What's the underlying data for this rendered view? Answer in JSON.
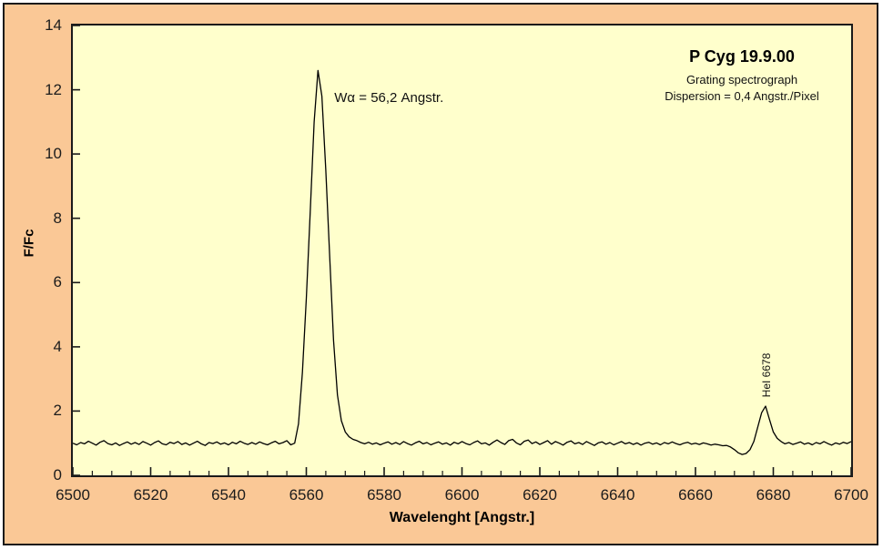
{
  "frame": {
    "background": "#fac896",
    "plot_background": "#ffffcc",
    "border_color": "#1a1a1a",
    "line_color": "#000000",
    "tick_label_color": "#1c1c1c"
  },
  "chart_data": {
    "type": "line",
    "title": "P Cyg 19.9.00",
    "subtitle1": "Grating spectrograph",
    "subtitle2": "Dispersion = 0,4 Angstr./Pixel",
    "xlabel": "Wavelenght [Angstr.]",
    "ylabel": "F/Fc",
    "xlim": [
      6500,
      6700
    ],
    "ylim": [
      0,
      14
    ],
    "x_major_step": 20,
    "x_minor_step": 5,
    "y_major_step": 2,
    "x_major_ticks": [
      6500,
      6520,
      6540,
      6560,
      6580,
      6600,
      6620,
      6640,
      6660,
      6680,
      6700
    ],
    "y_major_ticks": [
      0,
      2,
      4,
      6,
      8,
      10,
      12,
      14
    ],
    "grid": false,
    "legend": "none",
    "annotations": [
      {
        "text": "Wα = 56,2 Angstr.",
        "x": 6567.2,
        "y": 11.73,
        "rotate": 0
      },
      {
        "text": "HeI 6678",
        "x": 6678.2,
        "y": 3.12,
        "rotate": -90
      }
    ],
    "series": [
      {
        "name": "P Cyg spectrum",
        "x_start": 6500,
        "x_step": 1,
        "flux": [
          1.0,
          0.95,
          1.02,
          0.98,
          1.06,
          1.0,
          0.94,
          1.03,
          1.08,
          0.99,
          0.95,
          1.01,
          0.93,
          0.99,
          1.04,
          0.97,
          1.02,
          0.96,
          1.05,
          1.0,
          0.94,
          1.02,
          1.07,
          0.98,
          0.95,
          1.03,
          0.99,
          1.05,
          0.96,
          1.01,
          0.94,
          1.0,
          1.06,
          0.98,
          0.93,
          1.02,
          0.99,
          1.04,
          0.97,
          1.01,
          0.95,
          1.03,
          0.98,
          1.06,
          1.0,
          0.96,
          1.02,
          0.97,
          1.04,
          0.99,
          0.95,
          1.01,
          1.06,
          0.98,
          1.02,
          1.08,
          0.95,
          1.0,
          1.6,
          3.2,
          5.5,
          8.2,
          11.0,
          12.6,
          11.8,
          9.5,
          6.8,
          4.2,
          2.5,
          1.7,
          1.35,
          1.2,
          1.12,
          1.08,
          1.02,
          0.98,
          1.03,
          0.97,
          1.01,
          0.95,
          1.0,
          1.04,
          0.97,
          1.02,
          0.96,
          1.05,
          0.99,
          0.94,
          1.01,
          1.06,
          0.98,
          1.02,
          0.95,
          1.0,
          1.04,
          0.97,
          1.01,
          0.94,
          1.03,
          0.98,
          1.05,
          0.99,
          0.95,
          1.02,
          1.07,
          0.98,
          1.01,
          0.94,
          1.03,
          1.1,
          1.02,
          0.96,
          1.08,
          1.12,
          1.01,
          0.95,
          1.06,
          1.1,
          0.99,
          1.04,
          0.96,
          1.02,
          1.08,
          0.97,
          1.05,
          1.0,
          0.94,
          1.03,
          1.07,
          0.98,
          1.02,
          0.96,
          1.05,
          0.99,
          0.93,
          1.01,
          1.04,
          0.97,
          1.02,
          0.95,
          1.0,
          1.05,
          0.98,
          1.02,
          0.96,
          1.01,
          0.94,
          1.0,
          1.03,
          0.97,
          1.01,
          0.95,
          1.02,
          0.98,
          1.04,
          0.99,
          0.95,
          1.0,
          1.03,
          0.97,
          1.0,
          0.96,
          1.01,
          0.98,
          0.94,
          0.97,
          0.95,
          0.92,
          0.93,
          0.88,
          0.8,
          0.7,
          0.65,
          0.68,
          0.8,
          1.05,
          1.5,
          1.95,
          2.15,
          1.75,
          1.35,
          1.15,
          1.05,
          0.98,
          1.02,
          0.96,
          1.0,
          1.04,
          0.97,
          1.01,
          0.95,
          1.02,
          0.98,
          1.05,
          0.99,
          0.94,
          1.01,
          0.97,
          1.03,
          0.99,
          1.05
        ]
      }
    ]
  }
}
